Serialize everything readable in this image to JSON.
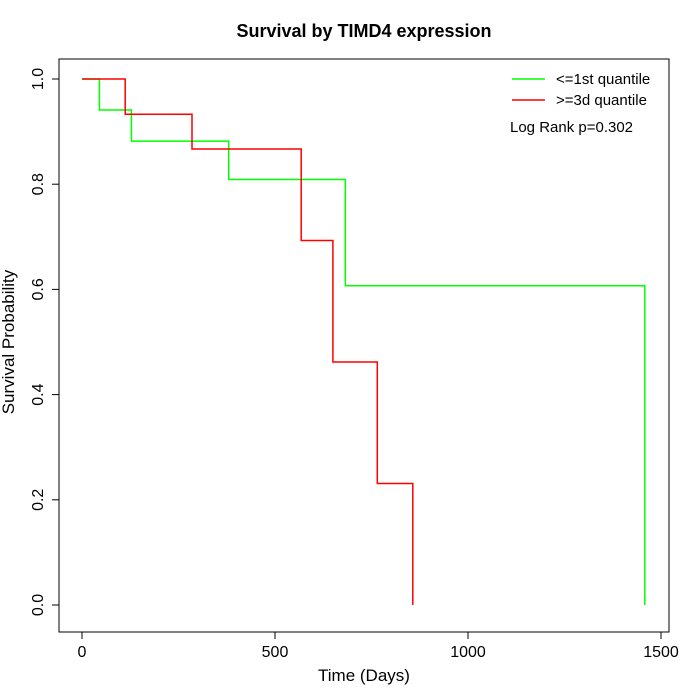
{
  "chart_data": {
    "type": "line",
    "title": "Survival by TIMD4 expression",
    "xlabel": "Time (Days)",
    "ylabel": "Survival Probability",
    "xlim": [
      0,
      1500
    ],
    "ylim": [
      0,
      1
    ],
    "x_ticks": [
      0,
      500,
      1000,
      1500
    ],
    "y_ticks": [
      0.0,
      0.2,
      0.4,
      0.6,
      0.8,
      1.0
    ],
    "x_tick_labels": [
      "0",
      "500",
      "1000",
      "1500"
    ],
    "y_tick_labels": [
      "0.0",
      "0.2",
      "0.4",
      "0.6",
      "0.8",
      "1.0"
    ],
    "grid": false,
    "legend_position": "top-right",
    "annotation": "Log Rank p=0.302",
    "series": [
      {
        "name": "<=1st quantile",
        "color": "#00ff00",
        "step_points": [
          [
            0,
            1.0
          ],
          [
            45,
            1.0
          ],
          [
            45,
            0.941
          ],
          [
            128,
            0.941
          ],
          [
            128,
            0.882
          ],
          [
            380,
            0.882
          ],
          [
            380,
            0.809
          ],
          [
            682,
            0.809
          ],
          [
            682,
            0.607
          ],
          [
            1458,
            0.607
          ],
          [
            1458,
            0.0
          ]
        ]
      },
      {
        "name": ">=3d quantile",
        "color": "#ff0000",
        "step_points": [
          [
            0,
            1.0
          ],
          [
            112,
            1.0
          ],
          [
            112,
            0.933
          ],
          [
            285,
            0.933
          ],
          [
            285,
            0.867
          ],
          [
            568,
            0.867
          ],
          [
            568,
            0.693
          ],
          [
            650,
            0.693
          ],
          [
            650,
            0.462
          ],
          [
            765,
            0.462
          ],
          [
            765,
            0.231
          ],
          [
            857,
            0.231
          ],
          [
            857,
            0.0
          ]
        ]
      }
    ]
  }
}
